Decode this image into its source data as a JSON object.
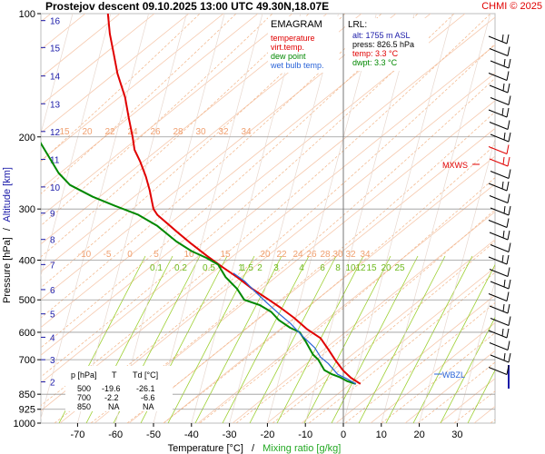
{
  "header": {
    "title": "Prostejov   descent   09.10.2025 13:00 UTC  49.30N,18.07E",
    "copyright": "CHMI © 2025"
  },
  "legend": {
    "heading": "EMAGRAM",
    "items": [
      {
        "label": "temperature",
        "color": "#e00000"
      },
      {
        "label": "virt.temp.",
        "color": "#e00000"
      },
      {
        "label": "dew point",
        "color": "#008800"
      },
      {
        "label": "wet bulb temp.",
        "color": "#2a64d8"
      }
    ]
  },
  "lrl": {
    "heading": "LRL:",
    "alt": "alt: 1755 m ASL",
    "press": "press: 826.5 hPa",
    "temp": "temp: 3.3 °C",
    "dwpt": "dwpt: 3.3 °C"
  },
  "markers": {
    "mxws": "MXWS",
    "wbzl": "WBZL"
  },
  "table": {
    "headers": [
      "p [hPa]",
      "T",
      "Td [°C]"
    ],
    "rows": [
      [
        "500",
        "-19.6",
        "-26.1"
      ],
      [
        "700",
        "-2.2",
        "-6.6"
      ],
      [
        "850",
        "NA",
        "NA"
      ]
    ]
  },
  "axes": {
    "xlabel_a": "Temperature [°C]",
    "xlabel_sep": "/",
    "xlabel_b": "Mixing ratio [g/kg]",
    "ylabel_a": "Pressure [hPa]",
    "ylabel_sep": "/",
    "ylabel_b": "Altitude [km]"
  },
  "chart_data": {
    "type": "line",
    "title": "Prostejov   descent   09.10.2025 13:00 UTC  49.30N,18.07E",
    "xlabel": "Temperature [°C] / Mixing ratio [g/kg]",
    "ylabel": "Pressure [hPa] / Altitude [km]",
    "xlim": [
      -80,
      40
    ],
    "ylim": [
      1000,
      100
    ],
    "y_scale": "log",
    "x_ticks": [
      -70,
      -60,
      -50,
      -40,
      -30,
      -20,
      -10,
      0,
      10,
      20,
      30
    ],
    "pressure_ticks": [
      100,
      200,
      300,
      400,
      500,
      600,
      700,
      850,
      925,
      1000
    ],
    "altitude_ticks_km": [
      {
        "km": 2,
        "p": 793
      },
      {
        "km": 3,
        "p": 700
      },
      {
        "km": 4,
        "p": 617
      },
      {
        "km": 5,
        "p": 541
      },
      {
        "km": 6,
        "p": 472
      },
      {
        "km": 7,
        "p": 410
      },
      {
        "km": 8,
        "p": 356
      },
      {
        "km": 9,
        "p": 307
      },
      {
        "km": 10,
        "p": 265
      },
      {
        "km": 11,
        "p": 227
      },
      {
        "km": 12,
        "p": 194
      },
      {
        "km": 13,
        "p": 166
      },
      {
        "km": 14,
        "p": 142
      },
      {
        "km": 15,
        "p": 121
      },
      {
        "km": 16,
        "p": 104
      }
    ],
    "grid": true,
    "series": [
      {
        "name": "temperature",
        "color": "#e00000",
        "points": [
          [
            4.5,
            802
          ],
          [
            2,
            775
          ],
          [
            0,
            745
          ],
          [
            -2.2,
            700
          ],
          [
            -4,
            660
          ],
          [
            -6,
            620
          ],
          [
            -9.5,
            590
          ],
          [
            -13,
            553
          ],
          [
            -16.5,
            523
          ],
          [
            -19.6,
            500
          ],
          [
            -24,
            470
          ],
          [
            -28,
            440
          ],
          [
            -32,
            415
          ],
          [
            -36,
            390
          ],
          [
            -40,
            365
          ],
          [
            -44,
            340
          ],
          [
            -49,
            310
          ],
          [
            -50,
            300
          ],
          [
            -50.5,
            285
          ],
          [
            -51,
            270
          ],
          [
            -52,
            250
          ],
          [
            -53.5,
            230
          ],
          [
            -55,
            215
          ],
          [
            -55.5,
            200
          ],
          [
            -56.5,
            180
          ],
          [
            -57.5,
            160
          ],
          [
            -59.5,
            140
          ],
          [
            -60.5,
            125
          ],
          [
            -61.5,
            112
          ],
          [
            -62,
            100
          ]
        ]
      },
      {
        "name": "dew point",
        "color": "#008800",
        "points": [
          [
            3.3,
            802
          ],
          [
            1,
            790
          ],
          [
            -1,
            772
          ],
          [
            -3,
            760
          ],
          [
            -5,
            742
          ],
          [
            -6.6,
            700
          ],
          [
            -8,
            680
          ],
          [
            -10,
            630
          ],
          [
            -11.5,
            600
          ],
          [
            -14,
            585
          ],
          [
            -17,
            560
          ],
          [
            -19,
            535
          ],
          [
            -22,
            515
          ],
          [
            -26.1,
            500
          ],
          [
            -28,
            470
          ],
          [
            -31,
            440
          ],
          [
            -33,
            410
          ],
          [
            -36,
            395
          ],
          [
            -40,
            380
          ],
          [
            -44,
            360
          ],
          [
            -49,
            330
          ],
          [
            -54,
            310
          ],
          [
            -60,
            295
          ],
          [
            -66,
            280
          ],
          [
            -72,
            262
          ],
          [
            -75,
            245
          ],
          [
            -80,
            205
          ]
        ]
      },
      {
        "name": "wet bulb temp.",
        "color": "#2a64d8",
        "points": [
          [
            3.3,
            802
          ],
          [
            1,
            780
          ],
          [
            -1.5,
            760
          ],
          [
            -4,
            715
          ],
          [
            -6,
            690
          ],
          [
            -7.5,
            655
          ],
          [
            -11,
            610
          ],
          [
            -14,
            570
          ],
          [
            -17,
            540
          ],
          [
            -20,
            510
          ],
          [
            -23,
            480
          ],
          [
            -26,
            450
          ],
          [
            -29,
            430
          ]
        ]
      }
    ],
    "isotherm_labels": [
      "15",
      "20",
      "22",
      "24",
      "26",
      "28",
      "30",
      "32",
      "34"
    ],
    "mixing_ratio_labels_top": [
      "-10",
      "-5",
      "0",
      "5",
      "10",
      "15",
      "20",
      "22",
      "24",
      "26",
      "28",
      "30",
      "32",
      "34"
    ],
    "mixing_ratio_values": [
      "0.1",
      "0.2",
      "0.5",
      "1",
      "1.5",
      "2",
      "3",
      "4",
      "6",
      "8",
      "10",
      "12",
      "15",
      "20",
      "25"
    ],
    "wind_barbs_count": 28
  }
}
